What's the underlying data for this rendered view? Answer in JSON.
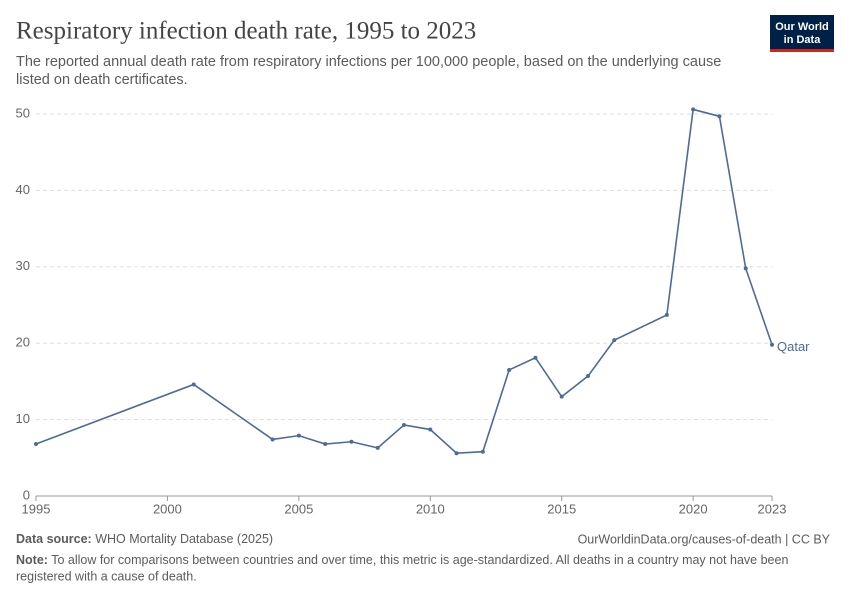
{
  "chart_data": {
    "type": "line",
    "title": "Respiratory infection death rate, 1995 to 2023",
    "subtitle": [
      "The reported annual death rate from respiratory infections per 100,000 people, based on the underlying cause",
      "listed on death certificates."
    ],
    "logo": [
      "Our World",
      "in Data"
    ],
    "x": [
      1995,
      2001,
      2004,
      2005,
      2006,
      2007,
      2008,
      2009,
      2010,
      2011,
      2012,
      2013,
      2014,
      2015,
      2016,
      2017,
      2019,
      2020,
      2021,
      2022,
      2023
    ],
    "series": [
      {
        "name": "Qatar",
        "color": "#4c6a9c",
        "values": [
          6.8,
          14.6,
          7.4,
          7.9,
          6.8,
          7.1,
          6.3,
          9.3,
          8.7,
          5.6,
          5.8,
          16.5,
          18.1,
          13.0,
          15.7,
          20.4,
          23.7,
          50.6,
          49.7,
          29.8,
          19.8
        ]
      }
    ],
    "xlim": [
      1995,
      2023
    ],
    "xticks": [
      1995,
      2000,
      2005,
      2010,
      2015,
      2020,
      2023
    ],
    "ylim": [
      0,
      50
    ],
    "yticks": [
      0,
      10,
      20,
      30,
      40,
      50
    ],
    "grid": true,
    "source_label": "Data source:",
    "source": "WHO Mortality Database (2025)",
    "url": "OurWorldinData.org/causes-of-death | CC BY",
    "note_label": "Note:",
    "note": [
      "To allow for comparisons between countries and over time, this metric is age-standardized. All deaths in a country may not have been",
      "registered with a cause of death."
    ]
  }
}
